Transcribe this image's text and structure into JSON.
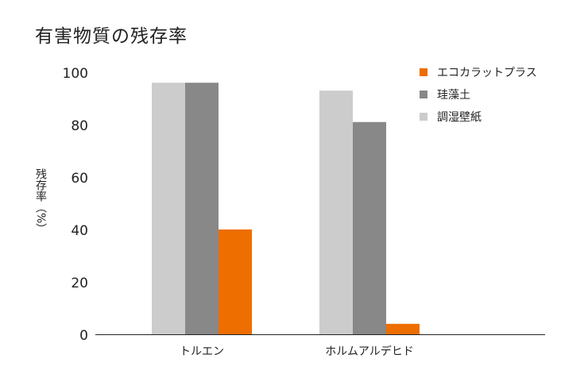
{
  "chart_data": {
    "type": "bar",
    "title": "有害物質の残存率",
    "ylabel_top": "残存率",
    "ylabel_unit": "（%）",
    "categories": [
      "トルエン",
      "ホルムアルデヒド"
    ],
    "series": [
      {
        "name": "調湿壁紙",
        "color": "#cccccc",
        "values": [
          96,
          93
        ]
      },
      {
        "name": "珪藻土",
        "color": "#888888",
        "values": [
          96,
          81
        ]
      },
      {
        "name": "エコカラットプラス",
        "color": "#ee6e00",
        "values": [
          40,
          4
        ]
      }
    ],
    "legend_order": [
      2,
      1,
      0
    ],
    "yticks": [
      0,
      20,
      40,
      60,
      80,
      100
    ],
    "ylim": [
      0,
      100
    ],
    "legend_position": "top-right"
  }
}
